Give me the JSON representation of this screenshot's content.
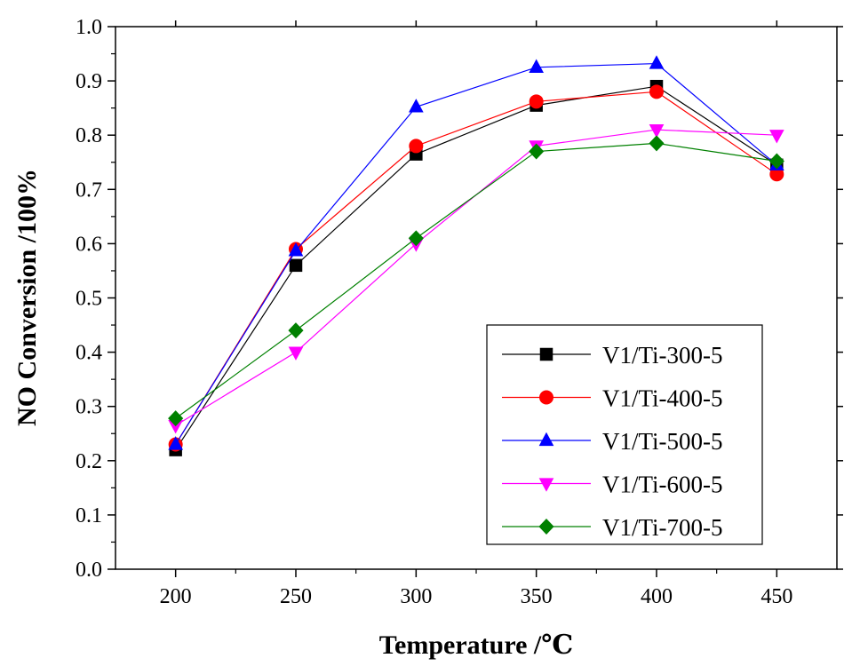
{
  "chart_data": {
    "type": "line",
    "title": "",
    "xlabel": "Temperature /℃",
    "ylabel": "NO Conversion /100%",
    "x": [
      200,
      250,
      300,
      350,
      400,
      450
    ],
    "xlim": [
      175,
      475
    ],
    "ylim": [
      0.0,
      1.0
    ],
    "x_ticks": [
      "200",
      "250",
      "300",
      "350",
      "400",
      "450"
    ],
    "y_ticks": [
      "0.0",
      "0.1",
      "0.2",
      "0.3",
      "0.4",
      "0.5",
      "0.6",
      "0.7",
      "0.8",
      "0.9",
      "1.0"
    ],
    "grid": false,
    "legend_position": "bottom-right",
    "series": [
      {
        "name": "V1/Ti-300-5",
        "color": "#000000",
        "marker": "square",
        "values": [
          0.22,
          0.56,
          0.765,
          0.855,
          0.89,
          0.745
        ]
      },
      {
        "name": "V1/Ti-400-5",
        "color": "#ff0000",
        "marker": "circle",
        "values": [
          0.23,
          0.59,
          0.78,
          0.862,
          0.88,
          0.728
        ]
      },
      {
        "name": "V1/Ti-500-5",
        "color": "#0000ff",
        "marker": "triangle-up",
        "values": [
          0.23,
          0.587,
          0.852,
          0.925,
          0.932,
          0.745
        ]
      },
      {
        "name": "V1/Ti-600-5",
        "color": "#ff00ff",
        "marker": "triangle-down",
        "values": [
          0.265,
          0.4,
          0.6,
          0.78,
          0.81,
          0.8
        ]
      },
      {
        "name": "V1/Ti-700-5",
        "color": "#008000",
        "marker": "diamond",
        "values": [
          0.278,
          0.44,
          0.61,
          0.77,
          0.785,
          0.752
        ]
      }
    ]
  }
}
